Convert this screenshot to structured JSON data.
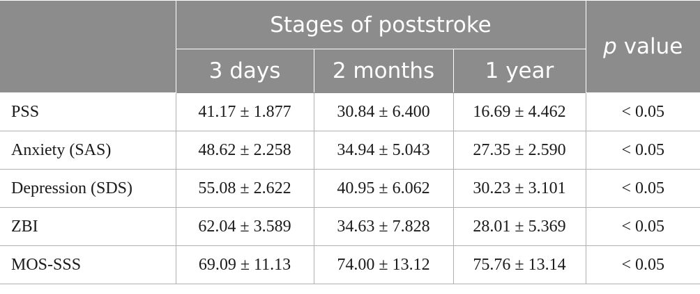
{
  "header": {
    "group_label": "Stages of poststroke",
    "p_italic": "p",
    "p_rest": " value",
    "columns": [
      "3 days",
      "2 months",
      "1 year"
    ]
  },
  "rows": [
    {
      "label": "PSS",
      "values": [
        "41.17 ± 1.877",
        "30.84 ± 6.400",
        "16.69 ± 4.462"
      ],
      "p": "< 0.05"
    },
    {
      "label": "Anxiety (SAS)",
      "values": [
        "48.62 ± 2.258",
        "34.94 ± 5.043",
        "27.35 ± 2.590"
      ],
      "p": "< 0.05"
    },
    {
      "label": "Depression (SDS)",
      "values": [
        "55.08 ± 2.622",
        "40.95 ± 6.062",
        "30.23 ± 3.101"
      ],
      "p": "< 0.05"
    },
    {
      "label": "ZBI",
      "values": [
        "62.04 ± 3.589",
        "34.63 ± 7.828",
        "28.01 ± 5.369"
      ],
      "p": "< 0.05"
    },
    {
      "label": "MOS-SSS",
      "values": [
        "69.09 ± 11.13",
        "74.00 ± 13.12",
        "75.76 ± 13.14"
      ],
      "p": "< 0.05"
    }
  ]
}
